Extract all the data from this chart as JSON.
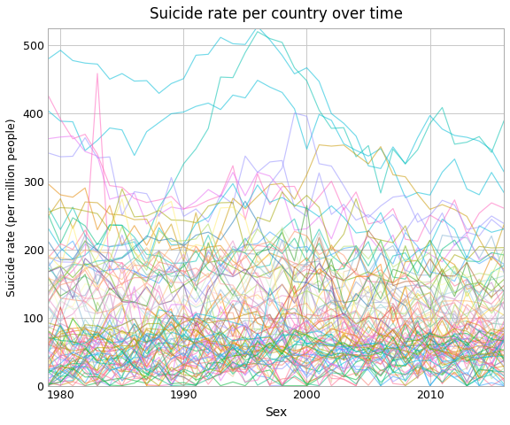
{
  "title": "Suicide rate per country over time",
  "xlabel": "Sex",
  "ylabel": "Suicide rate (per million people)",
  "xmin": 1979,
  "xmax": 2016,
  "ymin": 0,
  "ymax": 525,
  "yticks": [
    0,
    100,
    200,
    300,
    400,
    500
  ],
  "xticks": [
    1980,
    1990,
    2000,
    2010
  ],
  "background_color": "#ffffff",
  "panel_background": "#ffffff",
  "grid_color": "#c8c8c8",
  "alpha": 0.55,
  "linewidth": 0.85,
  "seed": 42
}
